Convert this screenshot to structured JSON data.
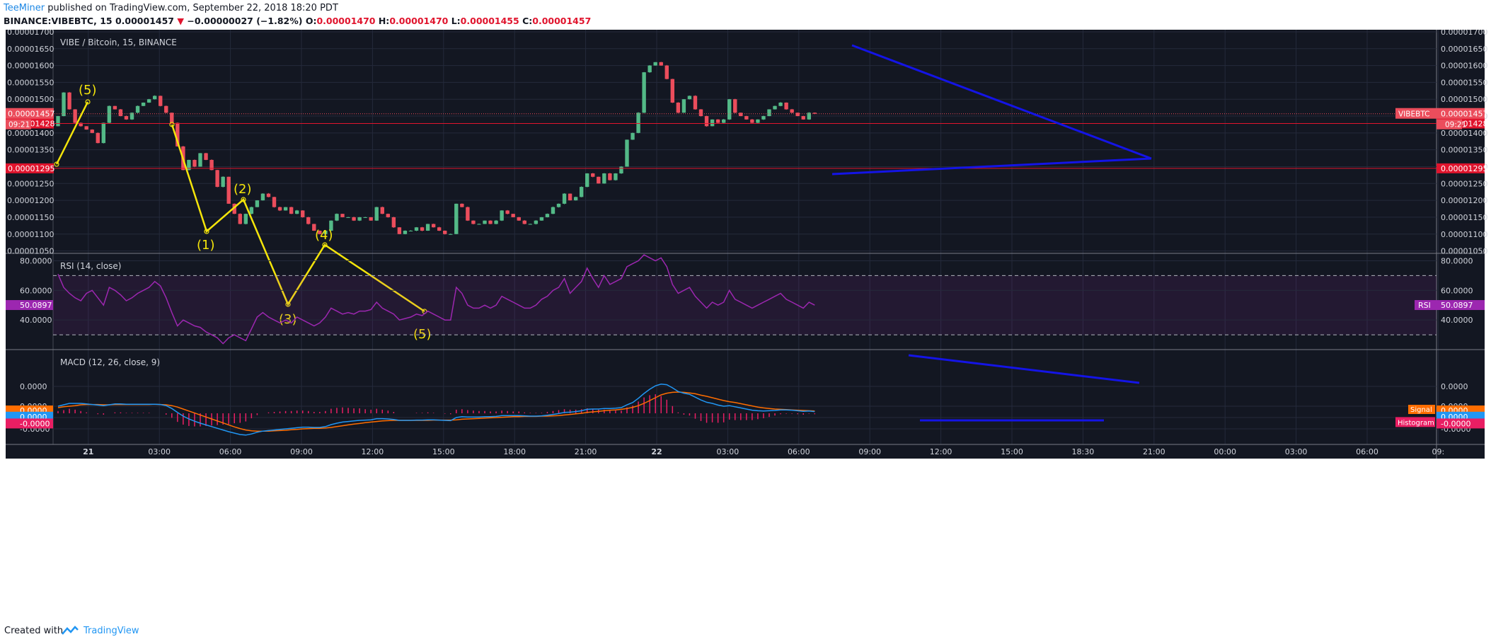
{
  "header": {
    "author": "TeeMiner",
    "published": "published on TradingView.com, September 22, 2018 18:20 PDT",
    "symbol": "BINANCE:VIBEBTC, 15",
    "price": "0.00001457",
    "arrow": "▼",
    "change": "−0.00000027 (−1.82%)",
    "o_label": "O:",
    "o_value": "0.00001470",
    "h_label": "H:",
    "h_value": "0.00001470",
    "l_label": "L:",
    "l_value": "0.00001455",
    "c_label": "C:",
    "c_value": "0.00001457"
  },
  "footer": {
    "created_with": "Created with",
    "brand": "TradingView"
  },
  "colors": {
    "background": "#131722",
    "grid": "#242a3b",
    "up": "#53b987",
    "down": "#eb4d5c",
    "rsi": "#9c27b0",
    "macd": "#2196f3",
    "signal": "#ff6d00",
    "histogram": "#e91e63",
    "trendline": "#1414e6",
    "wave": "#f5e50a",
    "level": "#e0142d"
  },
  "chart_data": [
    {
      "type": "candlestick",
      "title": "VIBE / Bitcoin, 15, BINANCE",
      "y_ticks": [
        "0.00001700",
        "0.00001650",
        "0.00001600",
        "0.00001550",
        "0.00001500",
        "0.00001450",
        "0.00001400",
        "0.00001350",
        "0.00001300",
        "0.00001250",
        "0.00001200",
        "0.00001150",
        "0.00001100",
        "0.00001050"
      ],
      "ylim": [
        1.047e-05,
        1.702e-05
      ],
      "x_ticks": [
        "21",
        "03:00",
        "06:00",
        "09:00",
        "12:00",
        "15:00",
        "18:00",
        "21:00",
        "22",
        "03:00",
        "06:00",
        "09:00",
        "12:00",
        "15:00",
        "18:30",
        "21:00",
        "00:00",
        "03:00",
        "06:00",
        "09:"
      ],
      "last_price": {
        "value": "0.00001457",
        "label": "VIBEBTC",
        "countdown": "09:21"
      },
      "levels": [
        {
          "value": "0.00001428"
        },
        {
          "value": "0.00001295"
        }
      ],
      "candles_close": [
        1450,
        1520,
        1470,
        1430,
        1420,
        1410,
        1400,
        1370,
        1430,
        1480,
        1470,
        1450,
        1440,
        1460,
        1480,
        1490,
        1500,
        1510,
        1480,
        1460,
        1430,
        1360,
        1290,
        1320,
        1300,
        1340,
        1320,
        1290,
        1240,
        1270,
        1190,
        1160,
        1130,
        1160,
        1180,
        1200,
        1220,
        1210,
        1180,
        1170,
        1180,
        1160,
        1170,
        1150,
        1130,
        1110,
        1100,
        1110,
        1140,
        1160,
        1150,
        1150,
        1140,
        1150,
        1150,
        1140,
        1180,
        1160,
        1150,
        1120,
        1100,
        1110,
        1110,
        1120,
        1110,
        1130,
        1120,
        1110,
        1100,
        1100,
        1190,
        1180,
        1140,
        1130,
        1130,
        1140,
        1130,
        1140,
        1170,
        1160,
        1150,
        1140,
        1130,
        1130,
        1140,
        1150,
        1160,
        1180,
        1190,
        1220,
        1200,
        1210,
        1240,
        1280,
        1270,
        1250,
        1280,
        1260,
        1280,
        1300,
        1380,
        1400,
        1460,
        1580,
        1600,
        1610,
        1600,
        1560,
        1490,
        1460,
        1500,
        1510,
        1470,
        1450,
        1420,
        1440,
        1430,
        1440,
        1500,
        1460,
        1450,
        1440,
        1430,
        1440,
        1450,
        1470,
        1480,
        1490,
        1470,
        1460,
        1450,
        1440,
        1460,
        1457
      ]
    },
    {
      "type": "line",
      "title": "RSI (14, close)",
      "y_ticks": [
        "80.0000",
        "60.0000",
        "40.0000"
      ],
      "band": [
        30,
        70
      ],
      "ylim": [
        20,
        85
      ],
      "last": {
        "label": "RSI",
        "value": "50.0897"
      },
      "values": [
        71,
        62,
        58,
        55,
        53,
        58,
        60,
        55,
        50,
        62,
        60,
        57,
        53,
        55,
        58,
        60,
        62,
        66,
        63,
        55,
        45,
        36,
        40,
        38,
        36,
        35,
        32,
        30,
        28,
        24,
        28,
        30,
        28,
        26,
        34,
        42,
        45,
        42,
        40,
        38,
        40,
        38,
        42,
        40,
        38,
        36,
        38,
        42,
        48,
        46,
        44,
        45,
        44,
        46,
        46,
        47,
        52,
        48,
        46,
        44,
        40,
        41,
        42,
        44,
        43,
        46,
        44,
        42,
        40,
        40,
        62,
        58,
        50,
        48,
        48,
        50,
        48,
        50,
        56,
        54,
        52,
        50,
        48,
        48,
        50,
        54,
        56,
        60,
        62,
        68,
        58,
        62,
        66,
        75,
        68,
        62,
        70,
        64,
        66,
        68,
        76,
        78,
        80,
        84,
        82,
        80,
        82,
        76,
        64,
        58,
        60,
        62,
        56,
        52,
        48,
        52,
        50,
        52,
        60,
        54,
        52,
        50,
        48,
        50,
        52,
        54,
        56,
        58,
        54,
        52,
        50,
        48,
        52,
        50
      ]
    },
    {
      "type": "line",
      "title": "MACD (12, 26, close, 9)",
      "y_ticks": [
        "0.0000",
        "0.0000",
        "-0.0000"
      ],
      "series": [
        {
          "name": "MACD",
          "values": [
            0.2,
            0.25,
            0.3,
            0.3,
            0.3,
            0.28,
            0.26,
            0.24,
            0.22,
            0.25,
            0.28,
            0.28,
            0.27,
            0.27,
            0.27,
            0.27,
            0.27,
            0.27,
            0.26,
            0.22,
            0.12,
            -0.02,
            -0.15,
            -0.25,
            -0.33,
            -0.4,
            -0.46,
            -0.52,
            -0.58,
            -0.64,
            -0.7,
            -0.75,
            -0.8,
            -0.82,
            -0.78,
            -0.72,
            -0.68,
            -0.66,
            -0.64,
            -0.62,
            -0.6,
            -0.58,
            -0.56,
            -0.54,
            -0.54,
            -0.55,
            -0.55,
            -0.52,
            -0.45,
            -0.4,
            -0.36,
            -0.34,
            -0.32,
            -0.3,
            -0.29,
            -0.28,
            -0.24,
            -0.24,
            -0.25,
            -0.27,
            -0.3,
            -0.3,
            -0.3,
            -0.29,
            -0.29,
            -0.28,
            -0.28,
            -0.29,
            -0.3,
            -0.31,
            -0.2,
            -0.17,
            -0.18,
            -0.18,
            -0.18,
            -0.17,
            -0.17,
            -0.16,
            -0.13,
            -0.13,
            -0.13,
            -0.13,
            -0.14,
            -0.15,
            -0.15,
            -0.14,
            -0.12,
            -0.09,
            -0.06,
            -0.02,
            -0.01,
            0.01,
            0.04,
            0.09,
            0.1,
            0.1,
            0.12,
            0.12,
            0.13,
            0.15,
            0.25,
            0.33,
            0.48,
            0.65,
            0.8,
            0.92,
            0.98,
            0.96,
            0.85,
            0.72,
            0.66,
            0.62,
            0.52,
            0.42,
            0.34,
            0.3,
            0.24,
            0.2,
            0.22,
            0.18,
            0.14,
            0.1,
            0.06,
            0.04,
            0.03,
            0.04,
            0.05,
            0.07,
            0.07,
            0.06,
            0.04,
            0.02,
            0.03,
            0.01
          ]
        },
        {
          "name": "Signal",
          "values": [
            0.15,
            0.18,
            0.2,
            0.22,
            0.25,
            0.26,
            0.26,
            0.26,
            0.25,
            0.25,
            0.26,
            0.26,
            0.26,
            0.26,
            0.26,
            0.26,
            0.26,
            0.27,
            0.26,
            0.25,
            0.22,
            0.17,
            0.1,
            0.03,
            -0.04,
            -0.11,
            -0.18,
            -0.25,
            -0.32,
            -0.39,
            -0.46,
            -0.53,
            -0.59,
            -0.64,
            -0.67,
            -0.68,
            -0.68,
            -0.68,
            -0.67,
            -0.66,
            -0.65,
            -0.63,
            -0.62,
            -0.6,
            -0.59,
            -0.58,
            -0.58,
            -0.57,
            -0.55,
            -0.52,
            -0.49,
            -0.46,
            -0.43,
            -0.41,
            -0.38,
            -0.36,
            -0.34,
            -0.32,
            -0.31,
            -0.3,
            -0.3,
            -0.3,
            -0.3,
            -0.3,
            -0.3,
            -0.3,
            -0.29,
            -0.29,
            -0.29,
            -0.29,
            -0.28,
            -0.26,
            -0.25,
            -0.24,
            -0.23,
            -0.22,
            -0.21,
            -0.2,
            -0.19,
            -0.18,
            -0.17,
            -0.17,
            -0.16,
            -0.16,
            -0.16,
            -0.15,
            -0.15,
            -0.14,
            -0.13,
            -0.11,
            -0.09,
            -0.07,
            -0.05,
            -0.02,
            0.0,
            0.02,
            0.04,
            0.06,
            0.07,
            0.09,
            0.12,
            0.16,
            0.22,
            0.3,
            0.4,
            0.5,
            0.6,
            0.66,
            0.69,
            0.7,
            0.69,
            0.67,
            0.64,
            0.59,
            0.55,
            0.5,
            0.45,
            0.4,
            0.36,
            0.33,
            0.29,
            0.25,
            0.21,
            0.17,
            0.14,
            0.12,
            0.1,
            0.09,
            0.08,
            0.07,
            0.06,
            0.05,
            0.04,
            0.03
          ]
        }
      ],
      "legend_labels": [
        "Signal",
        "Histogram"
      ],
      "last_values": [
        "0.0000",
        "0.0000",
        "-0.0000"
      ]
    }
  ],
  "annotations": {
    "wave_labels": [
      "(5)",
      "(1)",
      "(2)",
      "(3)",
      "(4)",
      "(5)"
    ]
  }
}
